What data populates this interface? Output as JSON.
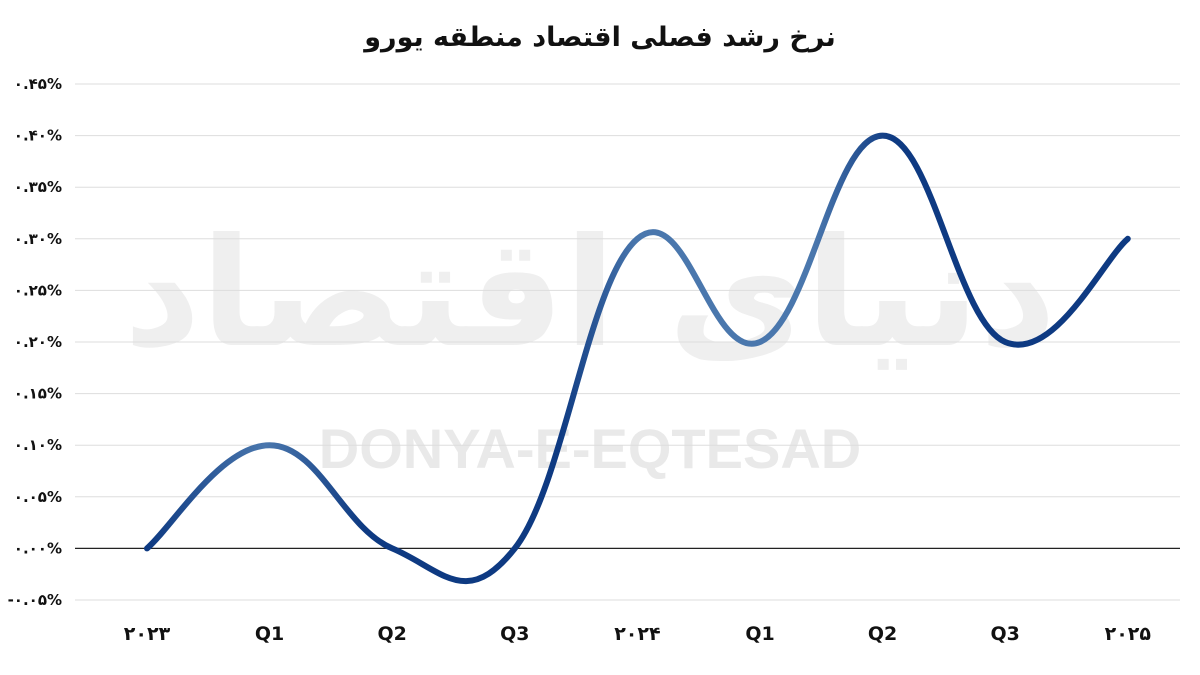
{
  "chart_data": {
    "type": "line",
    "title": "نرخ رشد فصلی اقتصاد منطقه یورو",
    "categories": [
      "۲۰۲۳",
      "Q1",
      "Q2",
      "Q3",
      "۲۰۲۴",
      "Q1",
      "Q2",
      "Q3",
      "۲۰۲۵"
    ],
    "series": [
      {
        "values": [
          0.0,
          0.1,
          0.0,
          0.0,
          0.3,
          0.2,
          0.4,
          0.2,
          0.3
        ]
      }
    ],
    "ylim": [
      -0.05,
      0.45
    ],
    "yticks": [
      "-۰.۰۵%",
      "۰.۰۰%",
      "۰.۰۵%",
      "۰.۱۰%",
      "۰.۱۵%",
      "۰.۲۰%",
      "۰.۲۵%",
      "۰.۳۰%",
      "۰.۳۵%",
      "۰.۴۰%",
      "۰.۴۵%"
    ],
    "grid": true,
    "line_color": "#0e3a82",
    "line_color_light": "#4a77ad"
  },
  "watermark": {
    "latin": "DONYA-E-EQTESAD",
    "arabic": "دنیای اقتصاد"
  }
}
